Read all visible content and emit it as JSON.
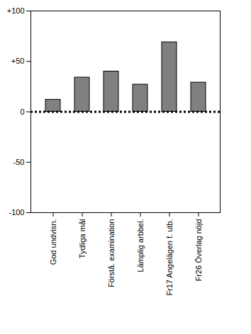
{
  "chart_data": {
    "type": "bar",
    "categories": [
      "God undvisn.",
      "Tydliga mål",
      "Förstå. examination",
      "Lämplig arbbel.",
      "Fr17 Angelägen f. utb.",
      "Fr26 Överlag nöjd"
    ],
    "values": [
      12,
      34,
      40,
      27,
      69,
      29
    ],
    "color": "#808080",
    "ylim": [
      -100,
      100
    ],
    "yticks": [
      -100,
      -50,
      0,
      {
        "value": 50,
        "label": "+50"
      },
      {
        "value": 100,
        "label": "+100"
      }
    ],
    "grid": false
  }
}
